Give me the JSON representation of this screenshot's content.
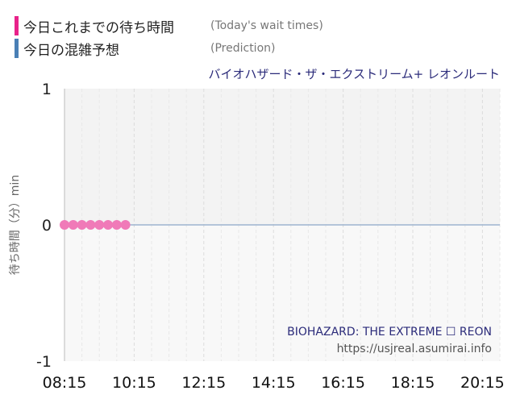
{
  "legend": [
    {
      "label": "今日これまでの待ち時間",
      "sublabel": "(Today's wait times)",
      "color": "#e8228a"
    },
    {
      "label": "今日の混雑予想",
      "sublabel": "(Prediction)",
      "color": "#4a7fb5"
    }
  ],
  "chart_data": {
    "type": "scatter",
    "title": "バイオハザード・ザ・エクストリーム+ レオンルート",
    "ylabel": "待ち時間（分）min",
    "xlabel": "",
    "ylim": [
      -1,
      1
    ],
    "y_ticks": [
      "1",
      "0",
      "-1"
    ],
    "x_range": [
      "08:15",
      "20:45"
    ],
    "x_ticks": [
      "08:15",
      "10:15",
      "12:15",
      "14:15",
      "16:15",
      "18:15",
      "20:15"
    ],
    "grid": true,
    "series": [
      {
        "name": "今日これまでの待ち時間",
        "color": "#f07ab8",
        "x": [
          "08:15",
          "08:30",
          "08:45",
          "09:00",
          "09:15",
          "09:30",
          "09:45",
          "10:00"
        ],
        "y": [
          0,
          0,
          0,
          0,
          0,
          0,
          0,
          0
        ]
      }
    ],
    "prediction_line": {
      "color": "#9eb4cf",
      "value": 0
    },
    "watermark": [
      "BIOHAZARD: THE EXTREME ☐ REON",
      "https://usjreal.asumirai.info"
    ]
  }
}
